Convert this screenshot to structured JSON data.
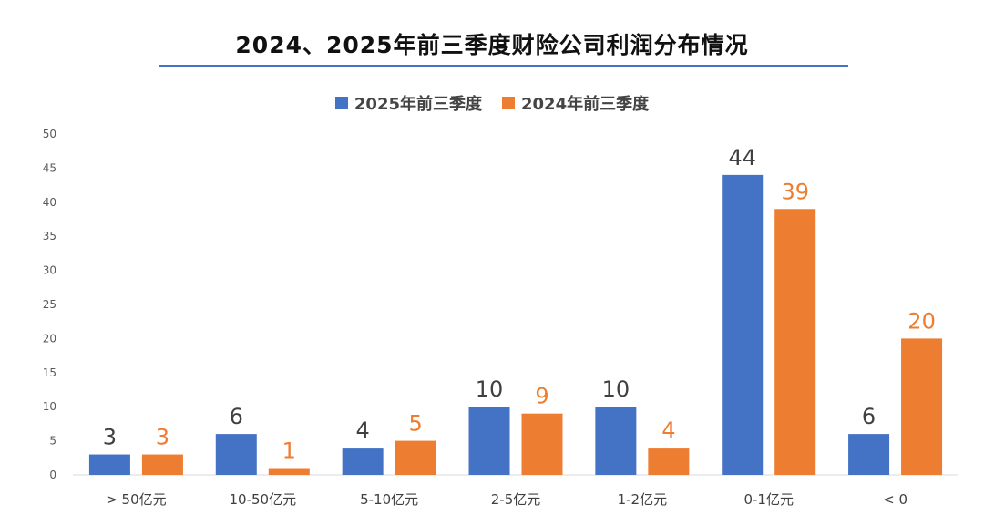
{
  "chart_data": {
    "type": "bar",
    "title": "2024、2025年前三季度财险公司利润分布情况",
    "categories": [
      "> 50亿元",
      "10-50亿元",
      "5-10亿元",
      "2-5亿元",
      "1-2亿元",
      "0-1亿元",
      "< 0"
    ],
    "series": [
      {
        "name": "2025年前三季度",
        "values": [
          3,
          6,
          4,
          10,
          10,
          44,
          6
        ],
        "color": "#4472c4",
        "label_color": "#404040"
      },
      {
        "name": "2024年前三季度",
        "values": [
          3,
          1,
          5,
          9,
          4,
          39,
          20
        ],
        "color": "#ed7d31",
        "label_color": "#ed7d31"
      }
    ],
    "ylim": [
      0,
      50
    ],
    "yticks": [
      0,
      5,
      10,
      15,
      20,
      25,
      30,
      35,
      40,
      45,
      50
    ],
    "grid": false,
    "legend_position": "top"
  }
}
